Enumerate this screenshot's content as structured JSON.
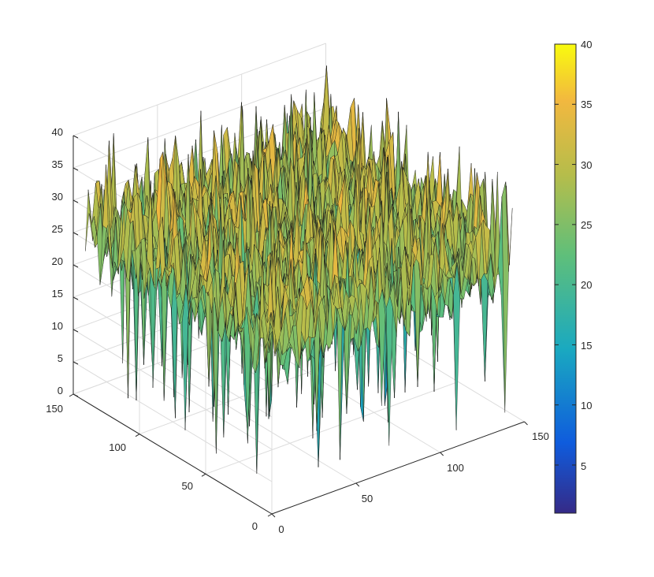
{
  "chart_data": {
    "type": "surface",
    "title": "",
    "xlabel": "",
    "ylabel": "",
    "zlabel": "",
    "xlim": [
      0,
      150
    ],
    "ylim": [
      0,
      150
    ],
    "zlim": [
      0,
      40
    ],
    "x_ticks": [
      "0",
      "50",
      "100",
      "150"
    ],
    "y_ticks": [
      "0",
      "50",
      "100",
      "150"
    ],
    "z_ticks": [
      "0",
      "5",
      "10",
      "15",
      "20",
      "25",
      "30",
      "35",
      "40"
    ],
    "grid": true,
    "colormap": "parula",
    "colorbar": {
      "range": [
        1,
        40
      ],
      "ticks": [
        "5",
        "10",
        "15",
        "20",
        "25",
        "30",
        "35",
        "40"
      ],
      "placement": "right"
    },
    "surface_summary": {
      "grid_size": [
        128,
        128
      ],
      "baseline_z": 25,
      "typical_range": [
        15,
        35
      ],
      "min_z": 1,
      "max_z": 40,
      "description_of_shape": "dense noisy surface around z≈25 with sharp upward spikes to ~40 and downward spikes to ~1"
    },
    "colors": {
      "parula_low": "#352a87",
      "parula_blue": "#0f5cdd",
      "parula_cyan": "#1aa9c0",
      "parula_green": "#5fbf7a",
      "parula_olive": "#b5bd4b",
      "parula_orange": "#f2b83f",
      "parula_high": "#f9fb0e",
      "edge": "#1a1a1a",
      "grid": "#dcdcdc",
      "axis": "#262626"
    }
  }
}
